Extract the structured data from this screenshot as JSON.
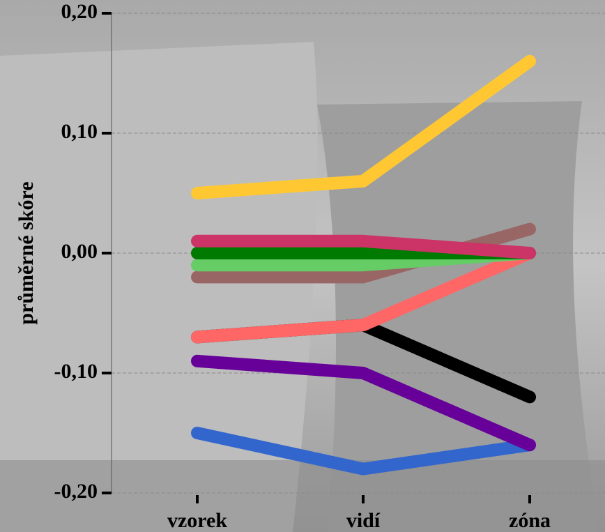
{
  "chart_data": {
    "type": "line",
    "ylabel": "průměrné skóre",
    "categories": [
      "vzorek",
      "vidí",
      "zóna"
    ],
    "series": [
      {
        "color": "#3366cc",
        "values": [
          -0.15,
          -0.18,
          -0.16
        ]
      },
      {
        "color": "#660099",
        "values": [
          -0.09,
          -0.1,
          -0.16
        ]
      },
      {
        "color": "#000000",
        "values": [
          -0.07,
          -0.06,
          -0.12
        ]
      },
      {
        "color": "#ff6666",
        "values": [
          -0.07,
          -0.06,
          0.0
        ]
      },
      {
        "color": "#996666",
        "values": [
          -0.02,
          -0.02,
          0.02
        ]
      },
      {
        "color": "#66cc66",
        "values": [
          -0.01,
          -0.01,
          0.0
        ]
      },
      {
        "color": "#007a00",
        "values": [
          0.0,
          0.0,
          0.0
        ]
      },
      {
        "color": "#cc3366",
        "values": [
          0.01,
          0.01,
          0.0
        ]
      },
      {
        "color": "#ffc832",
        "values": [
          0.05,
          0.06,
          0.16
        ]
      }
    ],
    "ylim": [
      -0.2,
      0.2
    ],
    "yticks": [
      {
        "value": -0.2,
        "label": "-0,20"
      },
      {
        "value": -0.1,
        "label": "-0,10"
      },
      {
        "value": 0,
        "label": "0,00"
      },
      {
        "value": 0.1,
        "label": "0,10"
      },
      {
        "value": 0.2,
        "label": "0,20"
      }
    ],
    "grid": true
  }
}
